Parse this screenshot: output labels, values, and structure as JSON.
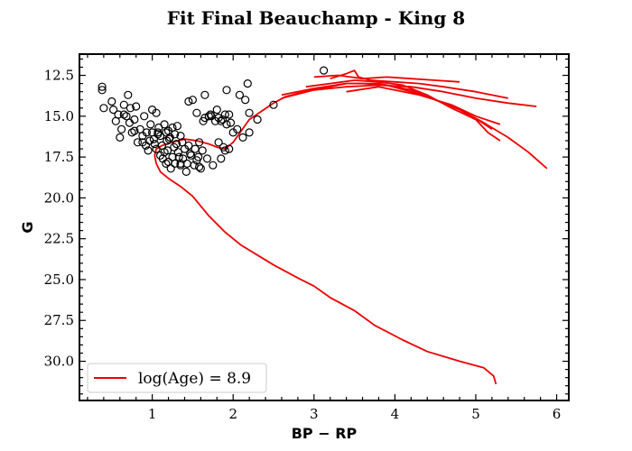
{
  "chart_data": {
    "type": "scatter",
    "title": "Fit Final Beauchamp - King 8",
    "xlabel": "BP − RP",
    "ylabel": "G",
    "xlim": [
      0.1,
      6.15
    ],
    "ylim": [
      32.4,
      11.2
    ],
    "y_inverted": true,
    "xticks": [
      1,
      2,
      3,
      4,
      5,
      6
    ],
    "yticks": [
      12.5,
      15.0,
      17.5,
      20.0,
      22.5,
      25.0,
      27.5,
      30.0
    ],
    "ytick_labels": [
      "12.5",
      "15.0",
      "17.5",
      "20.0",
      "22.5",
      "25.0",
      "27.5",
      "30.0"
    ],
    "legend_position": "lower-left",
    "colors": {
      "isochrone": "#ee0000",
      "stars": "#000000"
    },
    "series": [
      {
        "name": "",
        "kind": "scatter",
        "marker": "open-circle",
        "points": [
          [
            0.38,
            13.2
          ],
          [
            0.38,
            13.4
          ],
          [
            0.4,
            14.5
          ],
          [
            0.5,
            14.1
          ],
          [
            0.52,
            14.6
          ],
          [
            0.55,
            15.3
          ],
          [
            0.58,
            14.9
          ],
          [
            0.62,
            15.8
          ],
          [
            0.6,
            16.3
          ],
          [
            0.65,
            14.3
          ],
          [
            0.68,
            15.0
          ],
          [
            0.7,
            13.7
          ],
          [
            0.72,
            15.4
          ],
          [
            0.73,
            14.5
          ],
          [
            0.75,
            16.0
          ],
          [
            0.78,
            15.2
          ],
          [
            0.8,
            14.4
          ],
          [
            0.82,
            16.6
          ],
          [
            0.85,
            15.8
          ],
          [
            0.88,
            16.2
          ],
          [
            0.9,
            15.0
          ],
          [
            0.92,
            16.8
          ],
          [
            0.95,
            17.1
          ],
          [
            0.98,
            15.5
          ],
          [
            1.0,
            14.6
          ],
          [
            1.0,
            16.0
          ],
          [
            1.02,
            16.4
          ],
          [
            1.05,
            17.0
          ],
          [
            1.05,
            14.8
          ],
          [
            1.08,
            15.7
          ],
          [
            1.1,
            16.2
          ],
          [
            1.1,
            17.4
          ],
          [
            1.12,
            16.8
          ],
          [
            1.15,
            15.5
          ],
          [
            1.15,
            17.2
          ],
          [
            1.18,
            16.5
          ],
          [
            1.2,
            17.8
          ],
          [
            1.2,
            15.9
          ],
          [
            1.22,
            16.3
          ],
          [
            1.25,
            17.5
          ],
          [
            1.25,
            15.7
          ],
          [
            1.28,
            17.9
          ],
          [
            1.3,
            16.7
          ],
          [
            1.32,
            17.2
          ],
          [
            1.35,
            18.0
          ],
          [
            1.35,
            16.2
          ],
          [
            1.38,
            17.6
          ],
          [
            1.4,
            17.0
          ],
          [
            1.42,
            18.4
          ],
          [
            1.45,
            16.8
          ],
          [
            1.45,
            14.1
          ],
          [
            1.48,
            17.4
          ],
          [
            1.5,
            14.0
          ],
          [
            1.52,
            18.0
          ],
          [
            1.55,
            17.7
          ],
          [
            1.55,
            14.8
          ],
          [
            1.58,
            16.6
          ],
          [
            1.6,
            18.2
          ],
          [
            1.62,
            17.1
          ],
          [
            1.65,
            13.7
          ],
          [
            1.65,
            15.1
          ],
          [
            1.68,
            17.6
          ],
          [
            1.7,
            15.0
          ],
          [
            1.72,
            14.9
          ],
          [
            1.75,
            18.0
          ],
          [
            1.78,
            15.3
          ],
          [
            1.8,
            14.6
          ],
          [
            1.82,
            15.1
          ],
          [
            1.82,
            16.6
          ],
          [
            1.85,
            17.6
          ],
          [
            1.85,
            15.3
          ],
          [
            1.88,
            16.9
          ],
          [
            1.9,
            14.9
          ],
          [
            1.92,
            15.5
          ],
          [
            1.92,
            13.4
          ],
          [
            1.95,
            17.0
          ],
          [
            1.95,
            14.9
          ],
          [
            2.0,
            16.0
          ],
          [
            2.05,
            15.8
          ],
          [
            2.08,
            13.7
          ],
          [
            2.12,
            16.3
          ],
          [
            2.15,
            14.0
          ],
          [
            2.18,
            13.0
          ],
          [
            2.2,
            14.8
          ],
          [
            2.2,
            16.0
          ],
          [
            2.3,
            15.2
          ],
          [
            2.5,
            14.3
          ],
          [
            3.12,
            12.2
          ],
          [
            0.65,
            14.9
          ],
          [
            0.78,
            15.9
          ],
          [
            0.88,
            16.6
          ],
          [
            0.93,
            16.0
          ],
          [
            0.97,
            16.5
          ],
          [
            1.03,
            16.7
          ],
          [
            1.07,
            16.0
          ],
          [
            1.13,
            17.6
          ],
          [
            1.17,
            17.9
          ],
          [
            1.23,
            18.2
          ],
          [
            1.27,
            16.9
          ],
          [
            1.33,
            17.5
          ],
          [
            1.37,
            16.6
          ],
          [
            1.43,
            17.9
          ],
          [
            1.47,
            17.3
          ],
          [
            1.53,
            17.0
          ],
          [
            1.57,
            17.5
          ],
          [
            1.63,
            15.3
          ],
          [
            1.73,
            15.0
          ],
          [
            1.87,
            15.2
          ],
          [
            1.97,
            15.4
          ],
          [
            1.07,
            16.1
          ],
          [
            1.17,
            16.0
          ],
          [
            1.21,
            16.4
          ],
          [
            1.28,
            16.1
          ],
          [
            1.31,
            15.6
          ],
          [
            1.19,
            17.1
          ],
          [
            1.35,
            17.9
          ],
          [
            1.58,
            18.1
          ],
          [
            1.9,
            17.1
          ]
        ]
      },
      {
        "name": "log(Age) = 8.9",
        "kind": "line",
        "color": "#ee0000",
        "points": [
          [
            5.25,
            31.4
          ],
          [
            5.22,
            30.9
          ],
          [
            5.1,
            30.4
          ],
          [
            4.8,
            30.0
          ],
          [
            4.4,
            29.4
          ],
          [
            4.1,
            28.7
          ],
          [
            3.75,
            27.8
          ],
          [
            3.5,
            26.9
          ],
          [
            3.2,
            26.1
          ],
          [
            3.0,
            25.4
          ],
          [
            2.8,
            24.9
          ],
          [
            2.5,
            24.1
          ],
          [
            2.3,
            23.5
          ],
          [
            2.1,
            22.9
          ],
          [
            1.9,
            22.1
          ],
          [
            1.7,
            21.1
          ],
          [
            1.5,
            19.9
          ],
          [
            1.35,
            19.3
          ],
          [
            1.2,
            18.8
          ],
          [
            1.1,
            18.4
          ],
          [
            1.05,
            17.9
          ],
          [
            1.03,
            17.4
          ],
          [
            1.05,
            17.0
          ],
          [
            1.12,
            16.8
          ],
          [
            1.25,
            16.6
          ],
          [
            1.4,
            16.4
          ],
          [
            1.55,
            16.5
          ],
          [
            1.7,
            16.7
          ],
          [
            1.8,
            16.9
          ],
          [
            1.9,
            17.0
          ],
          [
            2.0,
            16.6
          ],
          [
            2.1,
            15.9
          ],
          [
            2.2,
            15.2
          ],
          [
            2.35,
            14.7
          ],
          [
            2.5,
            14.2
          ],
          [
            2.65,
            13.8
          ],
          [
            2.8,
            13.6
          ],
          [
            3.0,
            13.4
          ],
          [
            3.2,
            13.2
          ],
          [
            3.4,
            13.0
          ],
          [
            3.6,
            13.0
          ],
          [
            3.9,
            13.1
          ],
          [
            4.2,
            13.5
          ],
          [
            4.5,
            14.0
          ],
          [
            4.8,
            14.6
          ],
          [
            5.1,
            15.4
          ],
          [
            5.4,
            16.3
          ],
          [
            5.65,
            17.2
          ],
          [
            5.88,
            18.2
          ]
        ]
      },
      {
        "name": "",
        "kind": "line",
        "color": "#ee0000",
        "points": [
          [
            2.6,
            13.9
          ],
          [
            3.0,
            13.4
          ],
          [
            3.4,
            13.2
          ],
          [
            3.8,
            13.1
          ],
          [
            4.2,
            13.2
          ],
          [
            4.6,
            13.5
          ],
          [
            5.0,
            13.9
          ],
          [
            5.4,
            14.2
          ],
          [
            5.75,
            14.4
          ]
        ]
      },
      {
        "name": "",
        "kind": "line",
        "color": "#ee0000",
        "points": [
          [
            2.6,
            13.7
          ],
          [
            3.0,
            13.3
          ],
          [
            3.4,
            13.0
          ],
          [
            3.8,
            13.0
          ],
          [
            4.2,
            13.4
          ],
          [
            4.5,
            14.0
          ],
          [
            4.8,
            14.6
          ],
          [
            5.05,
            15.3
          ],
          [
            5.2,
            15.8
          ]
        ]
      },
      {
        "name": "",
        "kind": "line",
        "color": "#ee0000",
        "points": [
          [
            2.9,
            13.2
          ],
          [
            3.2,
            13.0
          ],
          [
            3.5,
            12.8
          ],
          [
            3.8,
            12.9
          ],
          [
            4.1,
            13.1
          ],
          [
            4.4,
            13.7
          ],
          [
            4.7,
            14.5
          ],
          [
            5.0,
            15.2
          ],
          [
            5.15,
            16.0
          ],
          [
            5.3,
            16.5
          ]
        ]
      },
      {
        "name": "",
        "kind": "line",
        "color": "#ee0000",
        "points": [
          [
            3.0,
            12.6
          ],
          [
            3.3,
            12.5
          ],
          [
            3.6,
            12.7
          ],
          [
            3.9,
            12.6
          ],
          [
            4.2,
            12.7
          ],
          [
            4.5,
            12.8
          ],
          [
            4.8,
            12.9
          ]
        ]
      },
      {
        "name": "",
        "kind": "line",
        "color": "#ee0000",
        "points": [
          [
            3.2,
            12.7
          ],
          [
            3.4,
            12.4
          ],
          [
            3.5,
            12.2
          ],
          [
            3.55,
            12.6
          ],
          [
            3.7,
            12.8
          ],
          [
            4.0,
            12.9
          ],
          [
            4.3,
            13.0
          ],
          [
            4.6,
            13.2
          ],
          [
            5.0,
            13.5
          ],
          [
            5.4,
            13.9
          ]
        ]
      },
      {
        "name": "",
        "kind": "line",
        "color": "#ee0000",
        "points": [
          [
            3.4,
            13.5
          ],
          [
            3.8,
            13.2
          ],
          [
            4.3,
            13.7
          ],
          [
            4.7,
            14.3
          ],
          [
            5.0,
            15.0
          ],
          [
            5.3,
            15.5
          ]
        ]
      }
    ]
  }
}
